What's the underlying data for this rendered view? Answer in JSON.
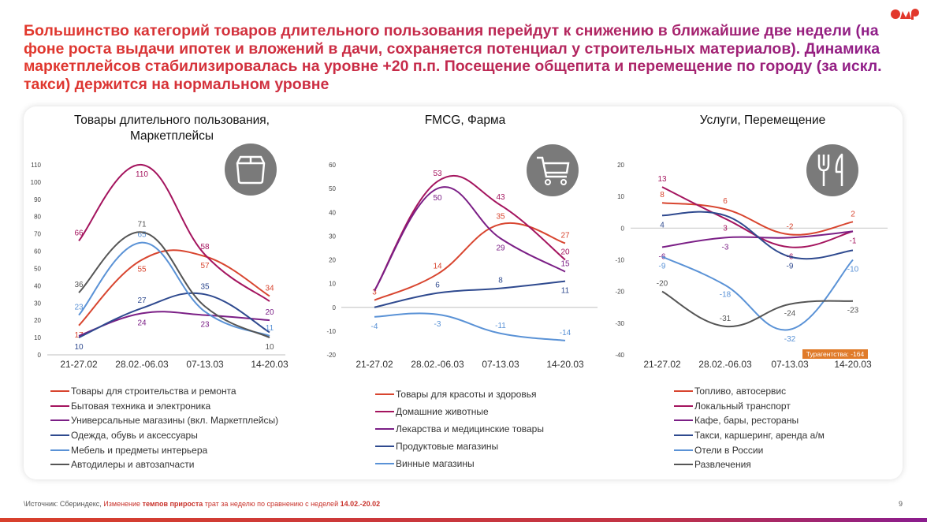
{
  "title": "Большинство категорий товаров длительного пользования перейдут к снижению в ближайшие две недели (на фоне роста выдачи ипотек и вложений в дачи, сохраняется потенциал у строительных материалов). Динамика маркетплейсов стабилизировалась на уровне +20 п.п. Посещение общепита и перемещение по городу (за искл. такси) держится на нормальном уровне",
  "logo_text": "OMD",
  "colors": {
    "red": "#d8452f",
    "magenta": "#a4145e",
    "purple": "#7b1f86",
    "darkblue": "#2f4a8f",
    "lightblue": "#5a92d6",
    "gray": "#555555",
    "badge": "#e07b2a"
  },
  "chart_data": [
    {
      "type": "line",
      "title_line1": "Товары длительного пользования,",
      "title_line2": "Маркетплейсы",
      "icon": "box-icon",
      "categories": [
        "21-27.02",
        "28.02.-06.03",
        "07-13.03",
        "14-20.03"
      ],
      "ylim": [
        0,
        110
      ],
      "yticks": [
        0,
        10,
        20,
        30,
        40,
        50,
        60,
        70,
        80,
        90,
        100,
        110
      ],
      "series": [
        {
          "name": "Товары для строительства и ремонта",
          "color": "#d8452f",
          "values": [
            17,
            55,
            57,
            34
          ]
        },
        {
          "name": "Бытовая техника и электроника",
          "color": "#a4145e",
          "values": [
            66,
            110,
            58,
            31
          ]
        },
        {
          "name": "Универсальные магазины (вкл. Маркетплейсы)",
          "color": "#7b1f86",
          "values": [
            11,
            24,
            23,
            20
          ]
        },
        {
          "name": "Одежда, обувь и аксессуары",
          "color": "#2f4a8f",
          "values": [
            10,
            27,
            35,
            13
          ]
        },
        {
          "name": "Мебель и предметы интерьера",
          "color": "#5a92d6",
          "values": [
            23,
            65,
            25,
            11
          ]
        },
        {
          "name": "Автодилеры и автозапчасти",
          "color": "#555555",
          "values": [
            36,
            71,
            28,
            10
          ]
        }
      ]
    },
    {
      "type": "line",
      "title_line1": "FMCG, Фарма",
      "icon": "shopping-cart-icon",
      "categories": [
        "21-27.02",
        "28.02.-06.03",
        "07-13.03",
        "14-20.03"
      ],
      "ylim": [
        -20,
        60
      ],
      "yticks": [
        -20,
        -10,
        0,
        10,
        20,
        30,
        40,
        50,
        60
      ],
      "series": [
        {
          "name": "Товары для красоты и здоровья",
          "color": "#d8452f",
          "values": [
            3,
            14,
            35,
            27
          ]
        },
        {
          "name": "Домашние животные",
          "color": "#a4145e",
          "values": [
            7,
            53,
            43,
            20
          ]
        },
        {
          "name": "Лекарства и медицинские товары",
          "color": "#7b1f86",
          "values": [
            7,
            50,
            29,
            15
          ]
        },
        {
          "name": "Продуктовые магазины",
          "color": "#2f4a8f",
          "values": [
            0,
            6,
            8,
            11
          ]
        },
        {
          "name": "Винные магазины",
          "color": "#5a92d6",
          "values": [
            -4,
            -3,
            -11,
            -14
          ]
        }
      ]
    },
    {
      "type": "line",
      "title_line1": "Услуги, Перемещение",
      "icon": "fork-knife-icon",
      "categories": [
        "21-27.02",
        "28.02.-06.03",
        "07-13.03",
        "14-20.03"
      ],
      "ylim": [
        -40,
        20
      ],
      "yticks": [
        -40,
        -30,
        -20,
        -10,
        0,
        10,
        20
      ],
      "annotation": "Турагентства: -164",
      "series": [
        {
          "name": "Топливо, автосервис",
          "color": "#d8452f",
          "values": [
            8,
            6,
            -2,
            2
          ]
        },
        {
          "name": "Локальный транспорт",
          "color": "#a4145e",
          "values": [
            13,
            3,
            -6,
            -1
          ]
        },
        {
          "name": "Кафе, бары, рестораны",
          "color": "#7b1f86",
          "values": [
            -6,
            -3,
            -3,
            -1
          ]
        },
        {
          "name": "Такси, каршеринг, аренда а/м",
          "color": "#2f4a8f",
          "values": [
            4,
            4,
            -9,
            -7
          ]
        },
        {
          "name": "Отели в России",
          "color": "#5a92d6",
          "values": [
            -9,
            -18,
            -32,
            -10
          ]
        },
        {
          "name": "Развлечения",
          "color": "#555555",
          "values": [
            -20,
            -31,
            -24,
            -23
          ]
        }
      ]
    }
  ],
  "footer": {
    "source": "\\Источник: Сбериндекс, ",
    "part1": "Изменение ",
    "part2": "темпов прироста",
    "part3": " трат за неделю по сравнению с неделей ",
    "part4": "14.02.-20.02"
  },
  "page_number": "9"
}
